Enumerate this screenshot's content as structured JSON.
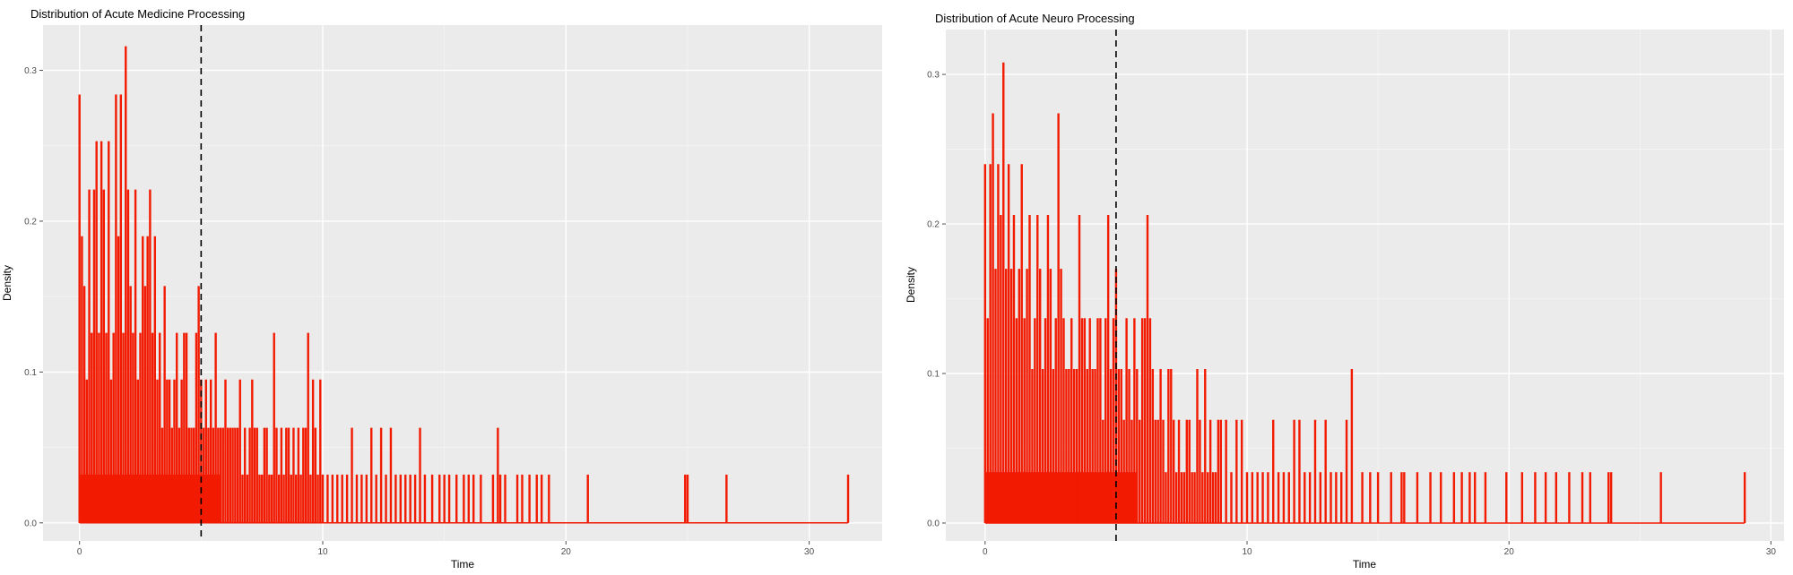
{
  "chart_data": [
    {
      "type": "bar",
      "title": "Distribution of Acute Medicine Processing",
      "xlabel": "Time",
      "ylabel": "Density",
      "xlim": [
        -1.5,
        33.0
      ],
      "ylim": [
        -0.012,
        0.33
      ],
      "xticks": [
        0,
        10,
        20,
        30
      ],
      "xtick_labels": [
        "0",
        "10",
        "20",
        "30"
      ],
      "yticks": [
        0.0,
        0.1,
        0.2,
        0.3
      ],
      "ytick_labels": [
        "0.0",
        "0.1",
        "0.2",
        "0.3"
      ],
      "grid": true,
      "legend": "none",
      "bar_color": "#f21a00",
      "background_color": "#ebebeb",
      "reference_line": {
        "x": 5.0,
        "style": "dashed",
        "color": "#000000"
      },
      "x": [
        0.0,
        0.1,
        0.2,
        0.3,
        0.4,
        0.5,
        0.6,
        0.7,
        0.8,
        0.9,
        1.0,
        1.1,
        1.2,
        1.3,
        1.4,
        1.5,
        1.6,
        1.7,
        1.8,
        1.9,
        2.0,
        2.1,
        2.2,
        2.3,
        2.4,
        2.5,
        2.6,
        2.7,
        2.8,
        2.9,
        3.0,
        3.1,
        3.2,
        3.3,
        3.4,
        3.5,
        3.6,
        3.7,
        3.8,
        3.9,
        4.0,
        4.1,
        4.2,
        4.3,
        4.4,
        4.5,
        4.6,
        4.7,
        4.8,
        4.9,
        5.0,
        5.1,
        5.2,
        5.3,
        5.4,
        5.5,
        5.6,
        5.7,
        5.8,
        5.9,
        6.0,
        6.1,
        6.2,
        6.3,
        6.4,
        6.5,
        6.6,
        6.7,
        6.8,
        6.9,
        7.0,
        7.1,
        7.2,
        7.3,
        7.4,
        7.5,
        7.6,
        7.7,
        7.8,
        7.9,
        8.0,
        8.1,
        8.2,
        8.3,
        8.4,
        8.5,
        8.6,
        8.7,
        8.8,
        8.9,
        9.0,
        9.1,
        9.2,
        9.3,
        9.4,
        9.5,
        9.6,
        9.7,
        9.8,
        9.9,
        10.0,
        10.2,
        10.4,
        10.6,
        10.8,
        11.0,
        11.2,
        11.4,
        11.6,
        11.8,
        12.0,
        12.2,
        12.4,
        12.6,
        12.8,
        13.0,
        13.2,
        13.4,
        13.6,
        13.8,
        14.0,
        14.2,
        14.5,
        14.8,
        15.0,
        15.2,
        15.5,
        15.8,
        16.0,
        16.2,
        16.5,
        17.0,
        17.2,
        17.3,
        17.5,
        18.0,
        18.2,
        18.5,
        18.8,
        19.0,
        19.3,
        20.9,
        24.9,
        25.0,
        26.6,
        31.6
      ],
      "values": [
        0.284,
        0.19,
        0.157,
        0.095,
        0.221,
        0.126,
        0.221,
        0.253,
        0.126,
        0.253,
        0.221,
        0.126,
        0.253,
        0.095,
        0.126,
        0.284,
        0.19,
        0.284,
        0.126,
        0.316,
        0.221,
        0.157,
        0.126,
        0.221,
        0.095,
        0.126,
        0.19,
        0.157,
        0.19,
        0.221,
        0.126,
        0.19,
        0.095,
        0.126,
        0.063,
        0.157,
        0.095,
        0.095,
        0.063,
        0.095,
        0.126,
        0.063,
        0.095,
        0.126,
        0.126,
        0.063,
        0.063,
        0.063,
        0.126,
        0.157,
        0.095,
        0.063,
        0.095,
        0.063,
        0.095,
        0.063,
        0.126,
        0.063,
        0.063,
        0.063,
        0.095,
        0.063,
        0.063,
        0.063,
        0.063,
        0.063,
        0.095,
        0.032,
        0.063,
        0.032,
        0.063,
        0.095,
        0.063,
        0.063,
        0.032,
        0.032,
        0.063,
        0.063,
        0.032,
        0.032,
        0.126,
        0.063,
        0.032,
        0.063,
        0.032,
        0.063,
        0.063,
        0.032,
        0.063,
        0.032,
        0.063,
        0.032,
        0.063,
        0.063,
        0.126,
        0.032,
        0.095,
        0.063,
        0.032,
        0.095,
        0.032,
        0.032,
        0.032,
        0.032,
        0.032,
        0.032,
        0.063,
        0.032,
        0.032,
        0.032,
        0.063,
        0.032,
        0.063,
        0.032,
        0.063,
        0.032,
        0.032,
        0.032,
        0.032,
        0.032,
        0.063,
        0.032,
        0.032,
        0.032,
        0.032,
        0.032,
        0.032,
        0.032,
        0.032,
        0.032,
        0.032,
        0.032,
        0.063,
        0.032,
        0.032,
        0.032,
        0.032,
        0.032,
        0.032,
        0.032,
        0.032,
        0.032,
        0.032,
        0.032,
        0.032,
        0.032
      ]
    },
    {
      "type": "bar",
      "title": "Distribution of Acute Neuro Processing",
      "xlabel": "Time",
      "ylabel": "Density",
      "xlim": [
        -1.5,
        30.5
      ],
      "ylim": [
        -0.012,
        0.33
      ],
      "xticks": [
        0,
        10,
        20,
        30
      ],
      "xtick_labels": [
        "0",
        "10",
        "20",
        "30"
      ],
      "yticks": [
        0.0,
        0.1,
        0.2,
        0.3
      ],
      "ytick_labels": [
        "0.0",
        "0.1",
        "0.2",
        "0.3"
      ],
      "grid": true,
      "legend": "none",
      "bar_color": "#f21a00",
      "background_color": "#ebebeb",
      "reference_line": {
        "x": 5.0,
        "style": "dashed",
        "color": "#000000"
      },
      "x": [
        0.0,
        0.1,
        0.2,
        0.3,
        0.4,
        0.5,
        0.6,
        0.7,
        0.8,
        0.9,
        1.0,
        1.1,
        1.2,
        1.3,
        1.4,
        1.5,
        1.6,
        1.7,
        1.8,
        1.9,
        2.0,
        2.1,
        2.2,
        2.3,
        2.4,
        2.5,
        2.6,
        2.7,
        2.8,
        2.9,
        3.0,
        3.1,
        3.2,
        3.3,
        3.4,
        3.5,
        3.6,
        3.7,
        3.8,
        3.9,
        4.0,
        4.1,
        4.2,
        4.3,
        4.4,
        4.5,
        4.6,
        4.7,
        4.8,
        4.9,
        5.0,
        5.1,
        5.2,
        5.3,
        5.4,
        5.5,
        5.6,
        5.7,
        5.8,
        5.9,
        6.0,
        6.1,
        6.2,
        6.3,
        6.4,
        6.5,
        6.6,
        6.7,
        6.8,
        6.9,
        7.0,
        7.1,
        7.2,
        7.3,
        7.4,
        7.5,
        7.6,
        7.7,
        7.8,
        7.9,
        8.0,
        8.1,
        8.2,
        8.3,
        8.4,
        8.5,
        8.6,
        8.7,
        8.8,
        8.9,
        9.0,
        9.2,
        9.4,
        9.6,
        9.8,
        10.0,
        10.2,
        10.4,
        10.6,
        10.8,
        11.0,
        11.2,
        11.4,
        11.6,
        11.8,
        12.0,
        12.2,
        12.4,
        12.6,
        12.8,
        13.0,
        13.2,
        13.4,
        13.6,
        13.8,
        14.0,
        14.4,
        14.7,
        15.0,
        15.5,
        15.9,
        16.0,
        16.5,
        17.0,
        17.4,
        17.9,
        18.2,
        18.5,
        18.7,
        19.1,
        19.9,
        20.5,
        21.0,
        21.4,
        21.8,
        22.3,
        22.8,
        23.1,
        23.8,
        23.9,
        25.8,
        29.0
      ],
      "values": [
        0.24,
        0.137,
        0.24,
        0.274,
        0.17,
        0.24,
        0.206,
        0.308,
        0.17,
        0.24,
        0.17,
        0.206,
        0.137,
        0.17,
        0.24,
        0.137,
        0.17,
        0.206,
        0.103,
        0.137,
        0.206,
        0.17,
        0.103,
        0.137,
        0.206,
        0.17,
        0.103,
        0.137,
        0.274,
        0.17,
        0.137,
        0.103,
        0.103,
        0.137,
        0.103,
        0.103,
        0.206,
        0.137,
        0.137,
        0.103,
        0.137,
        0.103,
        0.103,
        0.137,
        0.137,
        0.069,
        0.137,
        0.206,
        0.103,
        0.137,
        0.17,
        0.103,
        0.103,
        0.069,
        0.137,
        0.103,
        0.069,
        0.137,
        0.103,
        0.069,
        0.137,
        0.137,
        0.206,
        0.137,
        0.103,
        0.069,
        0.069,
        0.103,
        0.069,
        0.034,
        0.103,
        0.103,
        0.069,
        0.034,
        0.069,
        0.034,
        0.034,
        0.069,
        0.069,
        0.034,
        0.034,
        0.103,
        0.069,
        0.034,
        0.103,
        0.034,
        0.069,
        0.034,
        0.034,
        0.069,
        0.069,
        0.069,
        0.034,
        0.069,
        0.069,
        0.034,
        0.034,
        0.034,
        0.034,
        0.034,
        0.069,
        0.034,
        0.034,
        0.034,
        0.069,
        0.069,
        0.034,
        0.034,
        0.069,
        0.034,
        0.069,
        0.034,
        0.034,
        0.034,
        0.069,
        0.103,
        0.034,
        0.034,
        0.034,
        0.034,
        0.034,
        0.034,
        0.034,
        0.034,
        0.034,
        0.034,
        0.034,
        0.034,
        0.034,
        0.034,
        0.034,
        0.034,
        0.034,
        0.034,
        0.034,
        0.034,
        0.034,
        0.034,
        0.034,
        0.034,
        0.034,
        0.034
      ]
    }
  ]
}
